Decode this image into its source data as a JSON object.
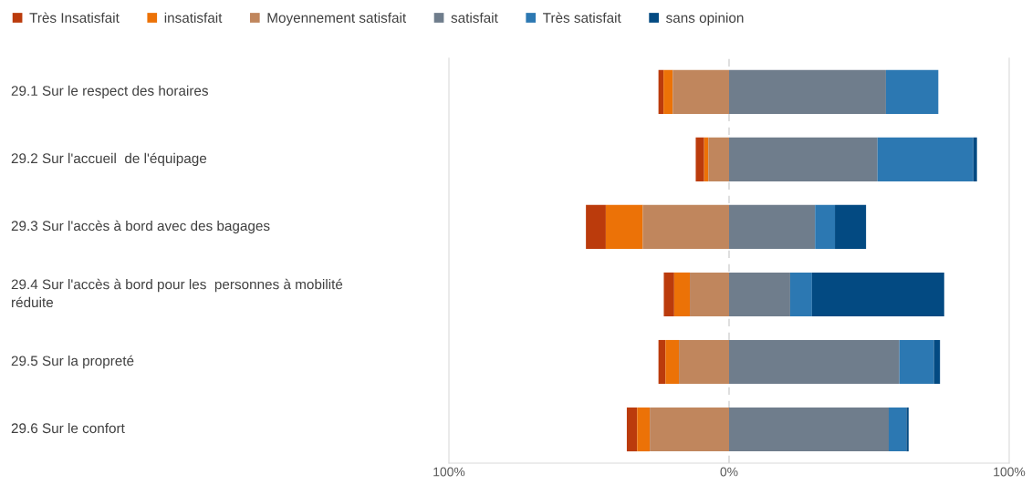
{
  "chart_data": {
    "type": "bar",
    "orientation": "horizontal",
    "stacked": true,
    "categories": [
      "29.1 Sur le respect des horaires",
      "29.2 Sur l'accueil  de l'équipage",
      "29.3 Sur l'accès à bord avec des bagages",
      "29.4 Sur l'accès à bord pour les  personnes à mobilité\nréduite",
      "29.5 Sur la propreté",
      "29.6 Sur le confort"
    ],
    "series": [
      {
        "name": "Très Insatisfait",
        "color": "#bb3b0c",
        "values": [
          -1.8,
          -3.0,
          -7.1,
          -3.7,
          -2.5,
          -3.7
        ]
      },
      {
        "name": "insatisfait",
        "color": "#ec7207",
        "values": [
          -3.3,
          -1.5,
          -13.2,
          -5.6,
          -4.8,
          -4.5
        ]
      },
      {
        "name": "Moyennement satisfait",
        "color": "#c0865d",
        "values": [
          -20.1,
          -7.4,
          -30.8,
          -14.0,
          -17.9,
          -28.3
        ]
      },
      {
        "name": "satisfait",
        "color": "#6f7d8c",
        "values": [
          56.0,
          53.0,
          30.7,
          21.8,
          60.8,
          57.0
        ]
      },
      {
        "name": "Très satisfait",
        "color": "#2c78b2",
        "values": [
          18.7,
          34.2,
          7.1,
          7.8,
          12.3,
          6.3
        ]
      },
      {
        "name": "sans opinion",
        "color": "#034a82",
        "values": [
          0,
          1.3,
          11.1,
          47.2,
          2.2,
          0.8
        ]
      }
    ],
    "xlim": [
      -100,
      100
    ],
    "xticks": [
      {
        "value": -100,
        "label": "100%"
      },
      {
        "value": 0,
        "label": "0%"
      },
      {
        "value": 100,
        "label": "100%"
      }
    ],
    "grid": false,
    "ref_lines": [
      {
        "axis": "x",
        "value": 0,
        "label": null,
        "color": "#d9d9d9",
        "line_style": "dashed"
      }
    ],
    "legend": "top left"
  }
}
